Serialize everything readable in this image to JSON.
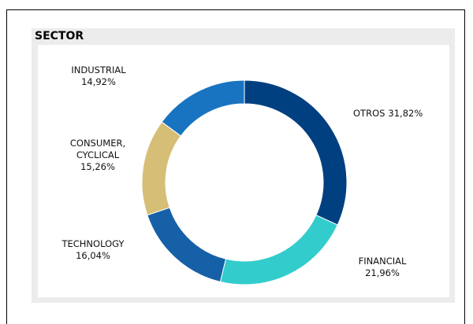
{
  "chart_data": {
    "type": "donut",
    "title": "SECTOR",
    "categories": [
      "OTROS",
      "FINANCIAL",
      "TECHNOLOGY",
      "CONSUMER, CYCLICAL",
      "INDUSTRIAL"
    ],
    "values": [
      31.82,
      21.96,
      16.04,
      15.26,
      14.92
    ],
    "value_labels": [
      "31,82%",
      "21,96%",
      "16,04%",
      "15,26%",
      "14,92%"
    ],
    "colors": [
      "#004080",
      "#33cccc",
      "#1660a8",
      "#d7be76",
      "#1874c0"
    ]
  }
}
